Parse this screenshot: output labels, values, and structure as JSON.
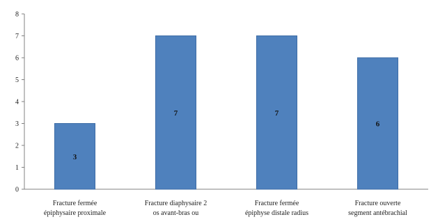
{
  "chart_data": {
    "type": "bar",
    "categories": [
      [
        "Fracture fermée",
        "épiphysaire proximale"
      ],
      [
        "Fracture diaphysaire 2",
        "os avant-bras ou"
      ],
      [
        "Fracture fermée",
        "épiphyse distale radius"
      ],
      [
        "Fracture ouverte",
        "segment antébrachial"
      ]
    ],
    "values": [
      3,
      7,
      7,
      6
    ],
    "data_labels": [
      "3",
      "7",
      "7",
      "6"
    ],
    "ylim": [
      0,
      8
    ],
    "yticks": [
      0,
      1,
      2,
      3,
      4,
      5,
      6,
      7,
      8
    ],
    "bar_color": "#4f81bd",
    "bar_edge_color": "#3d6ca6",
    "grid": false,
    "title": "",
    "xlabel": "",
    "ylabel": ""
  }
}
